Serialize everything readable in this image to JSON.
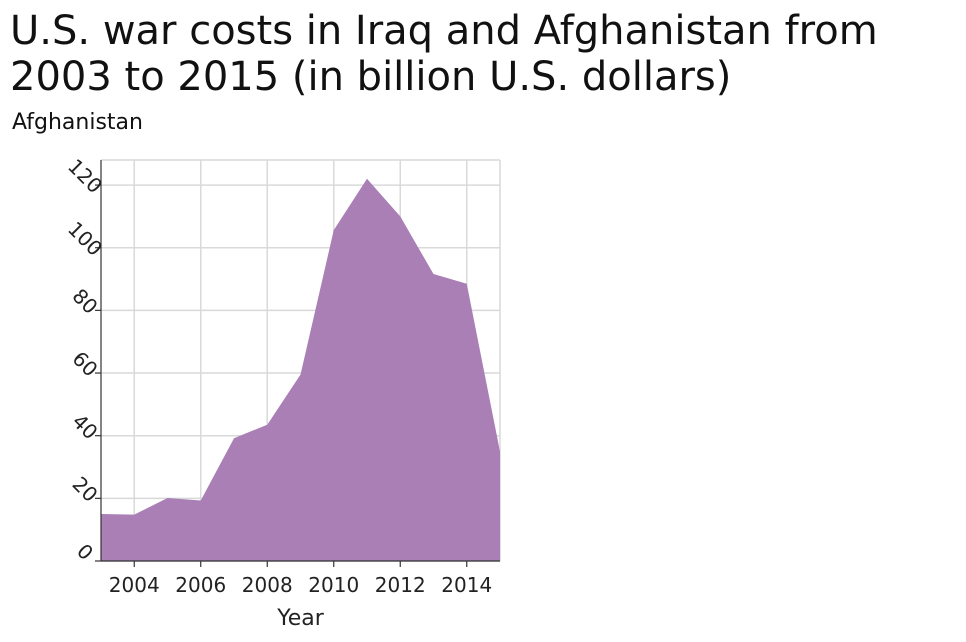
{
  "chart_data": {
    "type": "area",
    "title_line1": "U.S. war costs in Iraq and Afghanistan from",
    "title_line2": "2003 to 2015 (in billion U.S. dollars)",
    "ylabel": "Afghanistan",
    "xlabel": "Year",
    "x": [
      2003,
      2004,
      2005,
      2006,
      2007,
      2008,
      2009,
      2010,
      2011,
      2012,
      2013,
      2014,
      2015
    ],
    "series": [
      {
        "values": [
          15,
          14.8,
          20.1,
          19.3,
          39.2,
          43.5,
          59.5,
          105.6,
          122,
          110,
          91.6,
          88.5,
          34.9
        ],
        "color": "#a97fb5"
      }
    ],
    "xlim": [
      2003,
      2015
    ],
    "ylim": [
      0,
      128
    ],
    "x_ticks": [
      "2004",
      "2006",
      "2008",
      "2010",
      "2012",
      "2014"
    ],
    "y_ticks": [
      "0",
      "20",
      "40",
      "60",
      "80",
      "100",
      "120"
    ],
    "grid": true,
    "grid_color": "#d9d9d9"
  }
}
